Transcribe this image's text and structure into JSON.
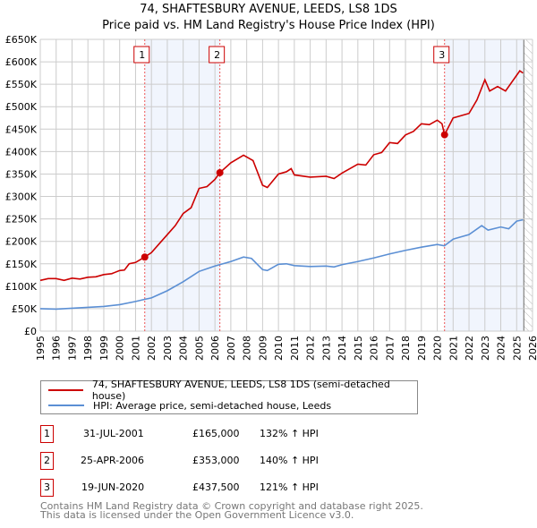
{
  "title": "74, SHAFTESBURY AVENUE, LEEDS, LS8 1DS",
  "subtitle": "Price paid vs. HM Land Registry's House Price Index (HPI)",
  "chart_data": {
    "type": "line",
    "title": "74, SHAFTESBURY AVENUE, LEEDS, LS8 1DS",
    "subtitle": "Price paid vs. HM Land Registry's House Price Index (HPI)",
    "xlim": [
      1995,
      2026
    ],
    "ylim": [
      0,
      650000
    ],
    "x_ticks": [
      "1995",
      "1996",
      "1997",
      "1998",
      "1999",
      "2000",
      "2001",
      "2002",
      "2003",
      "2004",
      "2005",
      "2006",
      "2007",
      "2008",
      "2009",
      "2010",
      "2011",
      "2012",
      "2013",
      "2014",
      "2015",
      "2016",
      "2017",
      "2018",
      "2019",
      "2020",
      "2021",
      "2022",
      "2023",
      "2024",
      "2025",
      "2026"
    ],
    "y_ticks": [
      {
        "v": 0,
        "l": "£0"
      },
      {
        "v": 50000,
        "l": "£50K"
      },
      {
        "v": 100000,
        "l": "£100K"
      },
      {
        "v": 150000,
        "l": "£150K"
      },
      {
        "v": 200000,
        "l": "£200K"
      },
      {
        "v": 250000,
        "l": "£250K"
      },
      {
        "v": 300000,
        "l": "£300K"
      },
      {
        "v": 350000,
        "l": "£350K"
      },
      {
        "v": 400000,
        "l": "£400K"
      },
      {
        "v": 450000,
        "l": "£450K"
      },
      {
        "v": 500000,
        "l": "£500K"
      },
      {
        "v": 550000,
        "l": "£550K"
      },
      {
        "v": 600000,
        "l": "£600K"
      },
      {
        "v": 650000,
        "l": "£650K"
      }
    ],
    "grid": true,
    "shaded_ranges": [
      [
        2001.58,
        2006.31
      ],
      [
        2020.46,
        2025.4
      ]
    ],
    "hatched_from": 2025.45,
    "series": [
      {
        "name": "74, SHAFTESBURY AVENUE, LEEDS, LS8 1DS (semi-detached house)",
        "color": "#cc0000",
        "x": [
          1995,
          1995.5,
          1996,
          1996.5,
          1997,
          1997.5,
          1998,
          1998.5,
          1999,
          1999.5,
          2000,
          2000.3,
          2000.6,
          2001,
          2001.58,
          2002,
          2002.5,
          2003,
          2003.5,
          2004,
          2004.5,
          2005,
          2005.5,
          2006,
          2006.31,
          2007,
          2007.8,
          2008.4,
          2009,
          2009.3,
          2010,
          2010.5,
          2010.8,
          2011,
          2012,
          2013,
          2013.5,
          2014,
          2015,
          2015.5,
          2016,
          2016.5,
          2017,
          2017.5,
          2018,
          2018.5,
          2019,
          2019.5,
          2020,
          2020.3,
          2020.46,
          2021,
          2021.5,
          2022,
          2022.5,
          2023,
          2023.3,
          2023.8,
          2024.3,
          2025,
          2025.2,
          2025.4
        ],
        "y": [
          113000,
          117000,
          117000,
          113000,
          118000,
          116000,
          120000,
          121000,
          126000,
          128000,
          135000,
          136000,
          150000,
          153000,
          165000,
          175000,
          195000,
          215000,
          235000,
          262000,
          275000,
          318000,
          322000,
          338000,
          353000,
          375000,
          392000,
          380000,
          325000,
          320000,
          350000,
          355000,
          362000,
          348000,
          343000,
          345000,
          340000,
          352000,
          372000,
          370000,
          393000,
          398000,
          420000,
          418000,
          437000,
          445000,
          462000,
          460000,
          470000,
          462000,
          437500,
          475000,
          480000,
          485000,
          515000,
          560000,
          535000,
          545000,
          535000,
          570000,
          580000,
          575000
        ]
      },
      {
        "name": "HPI: Average price, semi-detached house, Leeds",
        "color": "#5b8fd4",
        "x": [
          1995,
          1996,
          1997,
          1998,
          1999,
          2000,
          2001,
          2001.6,
          2002,
          2003,
          2004,
          2005,
          2006,
          2007,
          2007.8,
          2008.3,
          2009,
          2009.3,
          2010,
          2010.5,
          2011,
          2012,
          2013,
          2013.5,
          2014,
          2015,
          2016,
          2017,
          2018,
          2019,
          2020,
          2020.45,
          2021,
          2022,
          2022.8,
          2023.2,
          2024,
          2024.5,
          2025,
          2025.4
        ],
        "y": [
          50000,
          49000,
          51000,
          53000,
          55000,
          59000,
          66000,
          71000,
          74000,
          90000,
          110000,
          133000,
          145000,
          155000,
          165000,
          162000,
          137000,
          135000,
          149000,
          150000,
          146000,
          144000,
          145000,
          143000,
          148000,
          155000,
          163000,
          172000,
          180000,
          187000,
          193000,
          190000,
          205000,
          215000,
          235000,
          225000,
          232000,
          228000,
          245000,
          248000
        ]
      }
    ],
    "sales": [
      {
        "id": "1",
        "x": 2001.58,
        "y": 165000
      },
      {
        "id": "2",
        "x": 2006.31,
        "y": 353000
      },
      {
        "id": "3",
        "x": 2020.46,
        "y": 437500
      }
    ]
  },
  "legend": {
    "property": "74, SHAFTESBURY AVENUE, LEEDS, LS8 1DS (semi-detached house)",
    "hpi": "HPI: Average price, semi-detached house, Leeds"
  },
  "transactions": [
    {
      "num": "1",
      "date": "31-JUL-2001",
      "price": "£165,000",
      "hpi": "132% ↑ HPI"
    },
    {
      "num": "2",
      "date": "25-APR-2006",
      "price": "£353,000",
      "hpi": "140% ↑ HPI"
    },
    {
      "num": "3",
      "date": "19-JUN-2020",
      "price": "£437,500",
      "hpi": "121% ↑ HPI"
    }
  ],
  "footer": [
    "Contains HM Land Registry data © Crown copyright and database right 2025.",
    "This data is licensed under the Open Government Licence v3.0."
  ]
}
